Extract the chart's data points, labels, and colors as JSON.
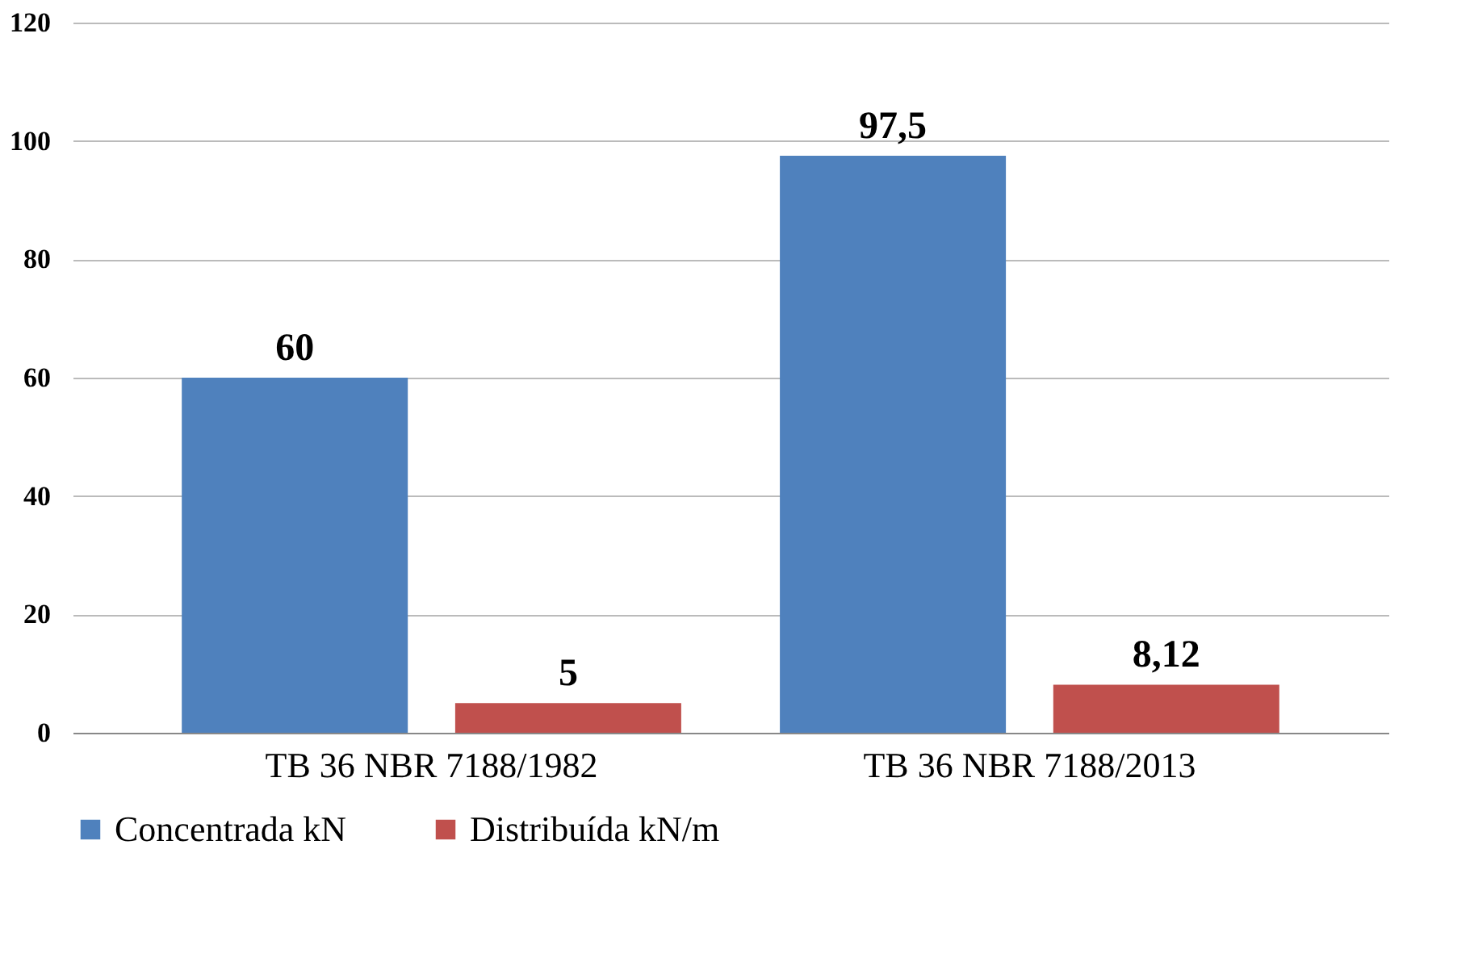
{
  "chart_data": {
    "type": "bar",
    "categories": [
      "TB 36 NBR 7188/1982",
      "TB 36 NBR 7188/2013"
    ],
    "series": [
      {
        "name": "Concentrada kN",
        "color": "#4f81bd",
        "values": [
          60,
          97.5
        ],
        "value_labels": [
          "60",
          "97,5"
        ]
      },
      {
        "name": "Distribuída kN/m",
        "color": "#c0504d",
        "values": [
          5,
          8.12
        ],
        "value_labels": [
          "5",
          "8,12"
        ]
      }
    ],
    "ylim": [
      0,
      120
    ],
    "yticks": [
      0,
      20,
      40,
      60,
      80,
      100,
      120
    ],
    "grid": "y",
    "legend": "bottom"
  }
}
